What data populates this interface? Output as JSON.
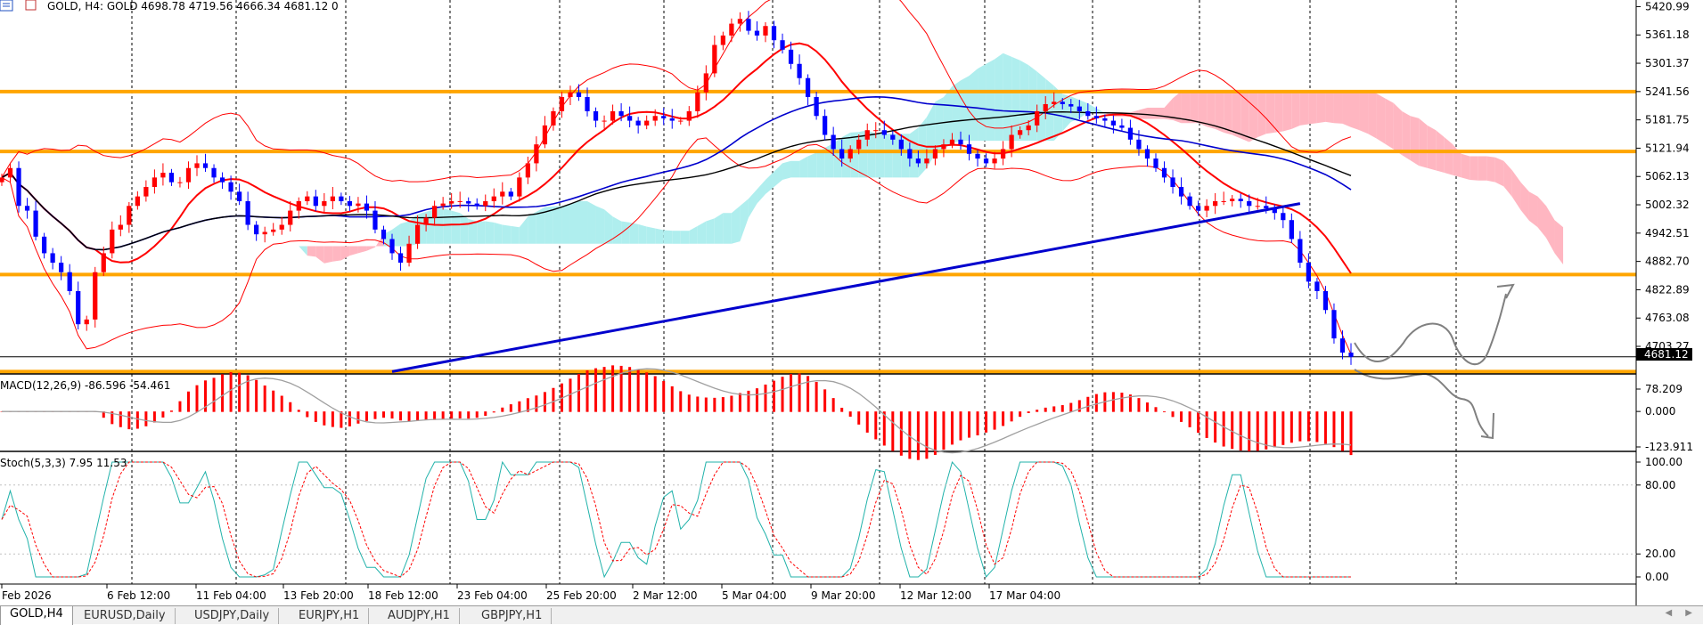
{
  "chart_header": {
    "symbol_text": "GOLD, H4:  GOLD  4698.78 4719.56 4666.34 4681.12  0"
  },
  "price_axis": {
    "ticks": [
      "5420.99",
      "5361.18",
      "5301.37",
      "5241.56",
      "5181.75",
      "5121.94",
      "5062.13",
      "5002.32",
      "4942.51",
      "4882.70",
      "4822.89",
      "4763.08",
      "4703.27"
    ],
    "current_price": "4681.12"
  },
  "time_axis": {
    "labels": [
      "Feb 2026",
      "6 Feb 12:00",
      "11 Feb 04:00",
      "13 Feb 20:00",
      "18 Feb 12:00",
      "23 Feb 04:00",
      "25 Feb 20:00",
      "2 Mar 12:00",
      "5 Mar 04:00",
      "9 Mar 20:00",
      "12 Mar 12:00",
      "17 Mar 04:00"
    ]
  },
  "macd_panel": {
    "title": "MACD(12,26,9) -86.596 -54.461",
    "ticks": [
      "78.209",
      "0.000",
      "-123.911"
    ]
  },
  "stoch_panel": {
    "title": "Stoch(5,3,3) 7.95 11.53",
    "ticks": [
      "100.00",
      "80.00",
      "20.00",
      "0.00"
    ]
  },
  "tabs": [
    {
      "label": "GOLD,H4",
      "active": true
    },
    {
      "label": "EURUSD,Daily",
      "active": false
    },
    {
      "label": "USDJPY,Daily",
      "active": false
    },
    {
      "label": "EURJPY,H1",
      "active": false
    },
    {
      "label": "AUDJPY,H1",
      "active": false
    },
    {
      "label": "GBPJPY,H1",
      "active": false
    }
  ],
  "colors": {
    "bull_candle": "#ff0000",
    "bear_candle": "#0000ff",
    "horizontal_levels": "#ffa500",
    "kumo_bear": "#ffb6c1",
    "kumo_bull": "#afeeee",
    "macd_histogram": "#ff0000",
    "stoch_main": "#20b2aa",
    "stoch_signal": "#ff0000"
  },
  "chart_data": {
    "type": "candlestick",
    "symbol": "GOLD",
    "timeframe": "H4",
    "ylim": [
      4645,
      5435
    ],
    "horizontal_levels": [
      5241.56,
      5115,
      4855,
      4650
    ],
    "approx_close_series": [
      5060,
      5080,
      5000,
      4990,
      4935,
      4900,
      4880,
      4860,
      4820,
      4750,
      4760,
      4860,
      4900,
      4950,
      4960,
      5000,
      5020,
      5040,
      5060,
      5070,
      5050,
      5050,
      5080,
      5090,
      5080,
      5060,
      5050,
      5030,
      5010,
      4960,
      4940,
      4945,
      4950,
      4960,
      4990,
      5010,
      5020,
      5000,
      5010,
      5020,
      5010,
      5000,
      5005,
      4990,
      4950,
      4930,
      4900,
      4880,
      4920,
      4960,
      4975,
      5000,
      5005,
      5010,
      5010,
      5005,
      5000,
      5010,
      5020,
      5030,
      5020,
      5060,
      5090,
      5130,
      5170,
      5200,
      5230,
      5240,
      5230,
      5200,
      5180,
      5180,
      5200,
      5190,
      5180,
      5170,
      5180,
      5190,
      5185,
      5180,
      5180,
      5200,
      5240,
      5280,
      5340,
      5360,
      5385,
      5395,
      5370,
      5360,
      5380,
      5350,
      5330,
      5300,
      5270,
      5230,
      5190,
      5150,
      5120,
      5100,
      5120,
      5140,
      5160,
      5160,
      5150,
      5140,
      5120,
      5100,
      5090,
      5100,
      5120,
      5130,
      5140,
      5130,
      5110,
      5100,
      5090,
      5100,
      5120,
      5150,
      5160,
      5170,
      5200,
      5215,
      5220,
      5215,
      5210,
      5200,
      5190,
      5185,
      5180,
      5170,
      5165,
      5140,
      5120,
      5100,
      5080,
      5060,
      5040,
      5020,
      5000,
      4990,
      5000,
      5010,
      5010,
      5015,
      5010,
      5000,
      5000,
      4995,
      4985,
      4970,
      4930,
      4880,
      4840,
      4820,
      4780,
      4720,
      4690,
      4681
    ],
    "macd_range": [
      -123.911,
      78.209
    ],
    "macd_last": -86.596,
    "macd_signal_last": -54.461,
    "stoch_main_last": 7.95,
    "stoch_signal_last": 11.53
  }
}
